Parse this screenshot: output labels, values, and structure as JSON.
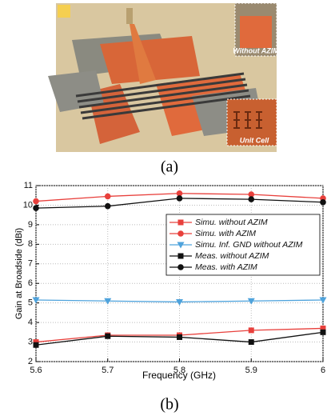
{
  "figure": {
    "inset_labels": [
      "Without AZIM",
      "Unit Cell"
    ],
    "caption_a": "(a)",
    "caption_b": "(b)"
  },
  "chart_data": {
    "type": "line",
    "xlabel": "Frequency (GHz)",
    "ylabel": "Gain at Broadside (dBi)",
    "x": [
      5.6,
      5.7,
      5.8,
      5.9,
      6
    ],
    "xlim": [
      5.6,
      6
    ],
    "xticks": [
      5.6,
      5.7,
      5.8,
      5.9,
      6
    ],
    "ylim": [
      2,
      11
    ],
    "yticks": [
      2,
      3,
      4,
      5,
      6,
      7,
      8,
      9,
      10,
      11
    ],
    "grid": true,
    "legend": "upper right",
    "series": [
      {
        "name": "Simu. without AZIM",
        "color": "#e8403c",
        "marker": "square",
        "values": [
          3.0,
          3.35,
          3.35,
          3.6,
          3.7
        ]
      },
      {
        "name": "Simu. with AZIM",
        "color": "#e8403c",
        "marker": "circle",
        "values": [
          10.2,
          10.45,
          10.6,
          10.55,
          10.35
        ]
      },
      {
        "name": "Simu. Inf. GND without AZIM",
        "color": "#4fa3dc",
        "marker": "triangle-down",
        "values": [
          5.15,
          5.1,
          5.05,
          5.1,
          5.15
        ]
      },
      {
        "name": "Meas. without AZIM",
        "color": "#111111",
        "marker": "square",
        "values": [
          2.85,
          3.3,
          3.25,
          3.0,
          3.5
        ]
      },
      {
        "name": "Meas. with AZIM",
        "color": "#111111",
        "marker": "circle",
        "values": [
          9.85,
          9.95,
          10.35,
          10.3,
          10.15
        ]
      }
    ]
  }
}
